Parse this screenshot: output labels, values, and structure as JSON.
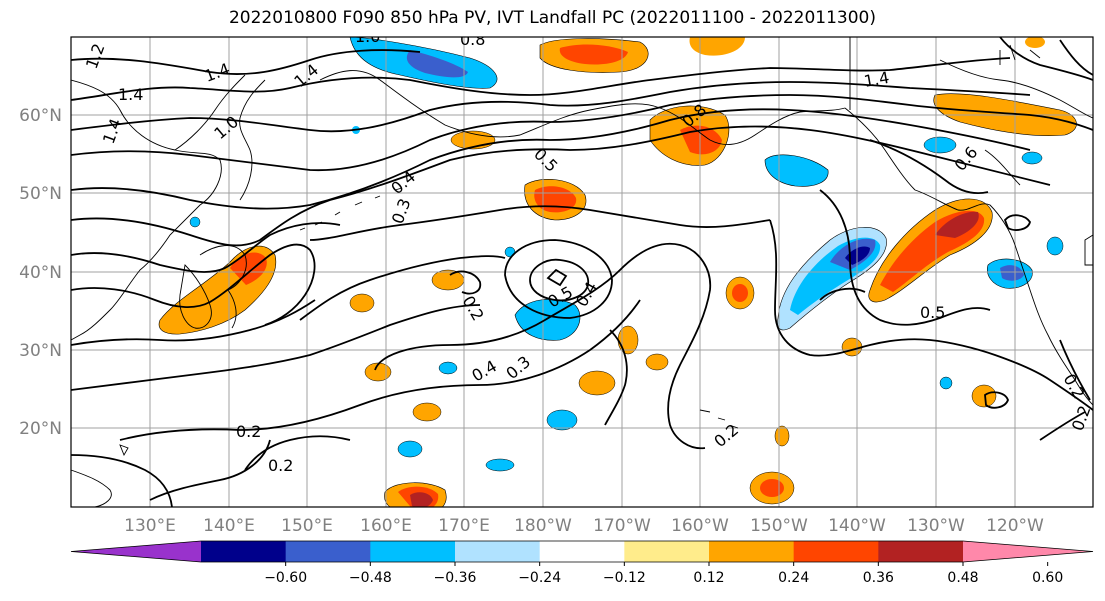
{
  "title": "2022010800 F090 850 hPa PV, IVT Landfall PC (2022011100 - 2022011300)",
  "map": {
    "lat_labels": [
      "60°N",
      "50°N",
      "40°N",
      "30°N",
      "20°N"
    ],
    "lon_labels": [
      "130°E",
      "140°E",
      "150°E",
      "160°E",
      "170°E",
      "180°W",
      "170°W",
      "160°W",
      "150°W",
      "140°W",
      "130°W",
      "120°W"
    ],
    "contour_labels": [
      "1.2",
      "1.4",
      "1.4",
      "1.4",
      "1.4",
      "1.0",
      "1.0",
      "0.8",
      "0.8",
      "0.6",
      "0.5",
      "0.4",
      "0.3",
      "0.2",
      "0.5",
      "0.4",
      "0.4",
      "0.3",
      "0.2",
      "0.2",
      "0.2",
      "0.5",
      "0.2",
      "0.2",
      "1.4"
    ]
  },
  "colorbar": {
    "ticks": [
      "−0.60",
      "−0.48",
      "−0.36",
      "−0.24",
      "−0.12",
      "0.12",
      "0.24",
      "0.36",
      "0.48",
      "0.60"
    ],
    "colors": [
      "#9932cc",
      "#00008b",
      "#3a5fcd",
      "#00bfff",
      "#b0e2ff",
      "#ffffff",
      "#ffec8b",
      "#ffa500",
      "#ff4500",
      "#b22222",
      "#ff88aa"
    ]
  },
  "colors": {
    "grid": "#a0a0a0",
    "contour": "#000000"
  }
}
